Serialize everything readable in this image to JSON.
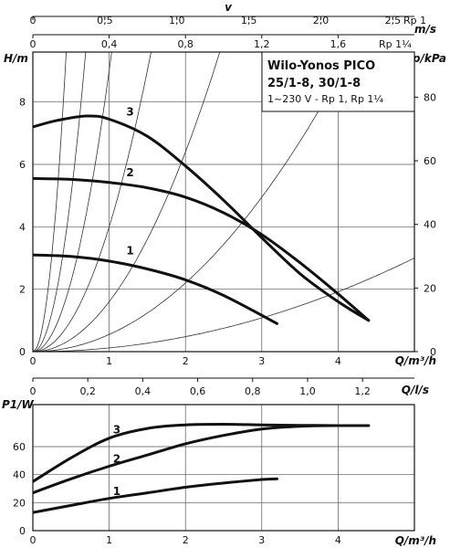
{
  "chart_data": [
    {
      "type": "line",
      "panel": "head",
      "title": "Wilo-Yonos PICO",
      "subtitle": "25/1-8, 30/1-8",
      "subtitle2": "1~230 V - Rp 1, Rp 1¼",
      "ylabel": "H/m",
      "ylabel_right": "p/kPa",
      "xlabel": "Q/m³/h",
      "top_axis_v_label": "v",
      "top_axis_ms_label": "m/s",
      "top_axis_rp1_label": "Rp 1",
      "top_axis_rp114_label": "Rp 1¼",
      "xlim": [
        0,
        5.0
      ],
      "ylim": [
        0,
        9.6
      ],
      "x_ticks": [
        "0",
        "1",
        "2",
        "3",
        "4"
      ],
      "y_ticks": [
        "0",
        "2",
        "4",
        "6",
        "8"
      ],
      "y_right_ticks": [
        "0",
        "20",
        "40",
        "60",
        "80"
      ],
      "v_rp1_ticks": [
        "0",
        "0,5",
        "1,0",
        "1,5",
        "2,0",
        "2,5"
      ],
      "v_rp114_ticks": [
        "0",
        "0,4",
        "0,8",
        "1,2",
        "1,6"
      ],
      "grid": true,
      "series": [
        {
          "name": "1",
          "x": [
            0,
            0.5,
            1.0,
            1.5,
            2.0,
            2.5,
            3.2
          ],
          "y": [
            3.1,
            3.05,
            2.9,
            2.65,
            2.3,
            1.8,
            0.9
          ]
        },
        {
          "name": "2",
          "x": [
            0,
            0.5,
            1.0,
            1.5,
            2.0,
            2.5,
            3.0,
            3.5,
            4.0,
            4.4
          ],
          "y": [
            5.55,
            5.52,
            5.42,
            5.25,
            4.95,
            4.45,
            3.75,
            2.85,
            1.85,
            1.0
          ]
        },
        {
          "name": "3",
          "x": [
            0,
            0.3,
            0.7,
            1.0,
            1.5,
            2.0,
            2.5,
            3.0,
            3.5,
            4.0,
            4.4
          ],
          "y": [
            7.2,
            7.4,
            7.55,
            7.45,
            6.9,
            5.95,
            4.85,
            3.65,
            2.5,
            1.6,
            1.0
          ]
        }
      ],
      "system_curves_k": [
        50,
        20,
        9,
        4,
        1.6,
        0.55,
        0.12
      ]
    },
    {
      "type": "line",
      "panel": "power",
      "ylabel": "P1/W",
      "xlabel": "Q/m³/h",
      "top_axis_label": "Q/l/s",
      "xlim": [
        0,
        5.0
      ],
      "ylim": [
        0,
        90
      ],
      "x_ticks": [
        "0",
        "1",
        "2",
        "3",
        "4"
      ],
      "y_ticks": [
        "0",
        "20",
        "40",
        "60"
      ],
      "top_ticks": [
        "0",
        "0,2",
        "0,4",
        "0,6",
        "0,8",
        "1,0",
        "1,2"
      ],
      "grid": true,
      "series": [
        {
          "name": "1",
          "x": [
            0,
            0.5,
            1.0,
            1.5,
            2.0,
            2.5,
            3.0,
            3.2
          ],
          "y": [
            13,
            18,
            23,
            27,
            31,
            34,
            36.5,
            37
          ]
        },
        {
          "name": "2",
          "x": [
            0,
            0.5,
            1.0,
            1.5,
            2.0,
            2.5,
            3.0,
            3.5,
            4.0,
            4.4
          ],
          "y": [
            27,
            37,
            46,
            54,
            62,
            68,
            72.5,
            74.5,
            75,
            75
          ]
        },
        {
          "name": "3",
          "x": [
            0,
            0.5,
            1.0,
            1.5,
            2.0,
            2.5,
            3.0,
            3.5,
            4.0,
            4.4
          ],
          "y": [
            35,
            52,
            66,
            73,
            75.5,
            76,
            75.5,
            75.2,
            75,
            75
          ]
        }
      ]
    }
  ]
}
